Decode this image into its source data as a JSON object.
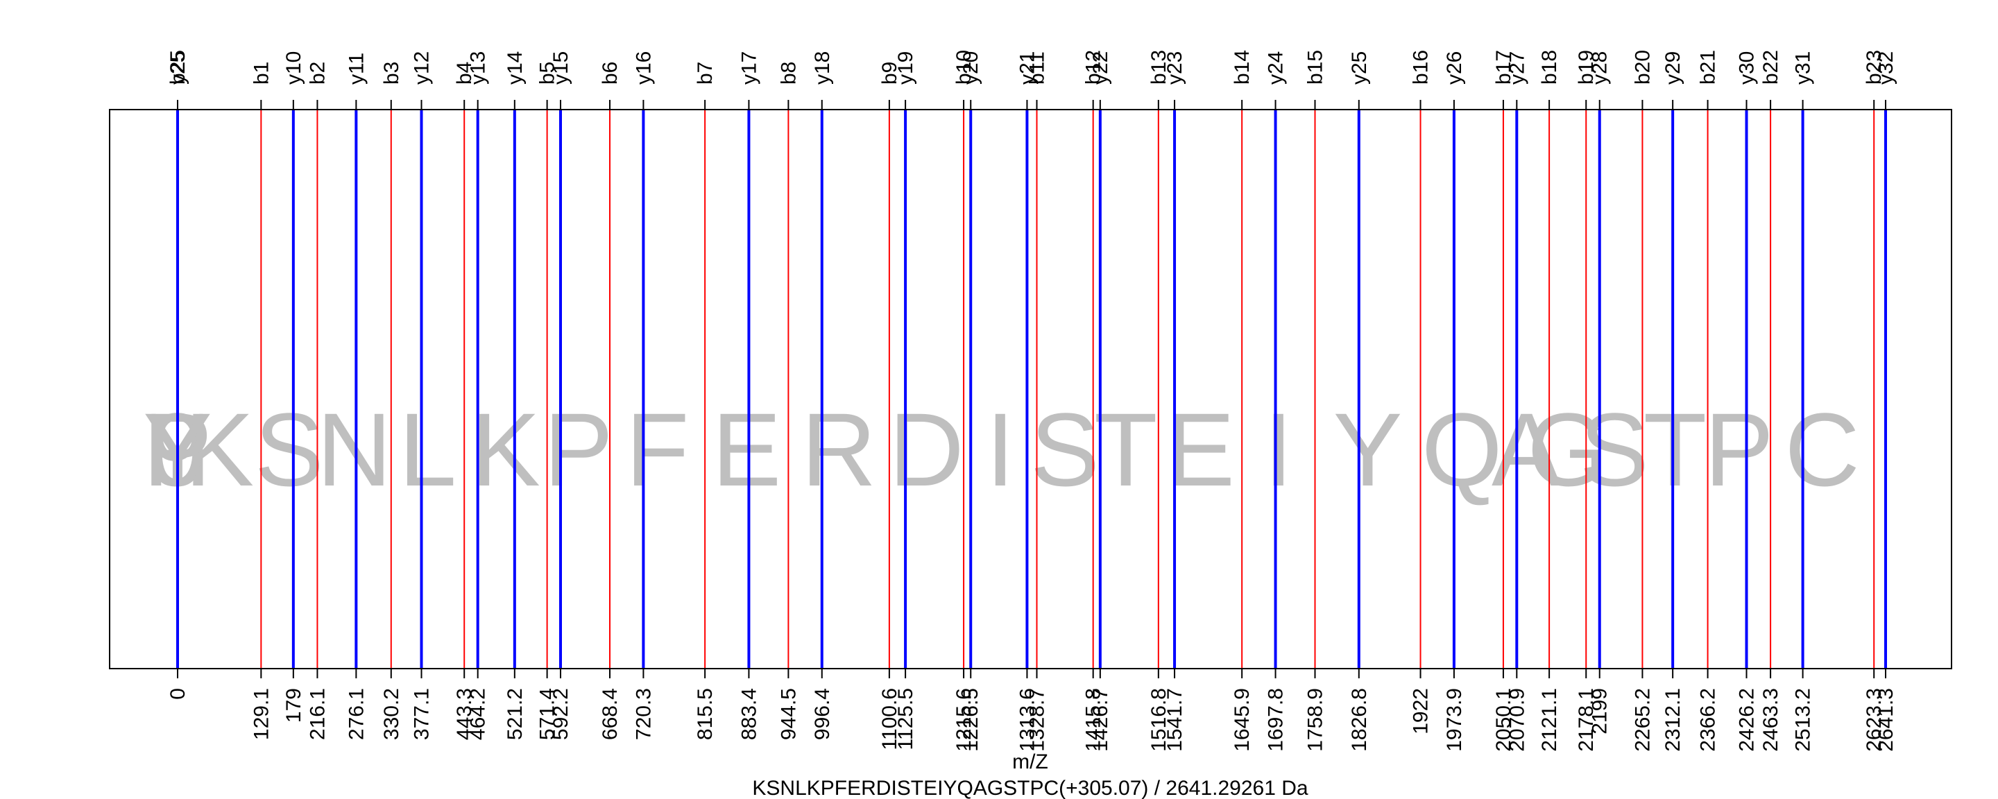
{
  "chart_data": {
    "type": "spectrum",
    "title": "KSNLKPFERDISTEIYQAGSTPC(+305.07) / 2641.29261 Da",
    "xlabel": "m/Z",
    "xlim": [
      0,
      2656
    ],
    "sequence": [
      "K",
      "S",
      "N",
      "L",
      "K",
      "P",
      "F",
      "E",
      "R",
      "D",
      "I",
      "S",
      "T",
      "E",
      "I",
      "Y",
      "Q",
      "A",
      "G",
      "S",
      "T",
      "P",
      "C"
    ],
    "colors": {
      "b": "#ff0000",
      "y": "#0000ff",
      "residue": "#bfbfbf",
      "frame": "#000000"
    },
    "b_ions": [
      {
        "label": "b1",
        "mz": 129.1,
        "mz_label": "129.1"
      },
      {
        "label": "b2",
        "mz": 216.1,
        "mz_label": "216.1"
      },
      {
        "label": "b3",
        "mz": 330.2,
        "mz_label": "330.2"
      },
      {
        "label": "b4",
        "mz": 443.3,
        "mz_label": "443.3"
      },
      {
        "label": "b5",
        "mz": 571.4,
        "mz_label": "571.4"
      },
      {
        "label": "b6",
        "mz": 668.4,
        "mz_label": "668.4"
      },
      {
        "label": "b7",
        "mz": 815.5,
        "mz_label": "815.5"
      },
      {
        "label": "b8",
        "mz": 944.5,
        "mz_label": "944.5"
      },
      {
        "label": "b9",
        "mz": 1100.6,
        "mz_label": "1100.6"
      },
      {
        "label": "b10",
        "mz": 1215.6,
        "mz_label": "1215.6"
      },
      {
        "label": "b11",
        "mz": 1328.7,
        "mz_label": "1328.7"
      },
      {
        "label": "b12",
        "mz": 1415.8,
        "mz_label": "1415.8"
      },
      {
        "label": "b13",
        "mz": 1516.8,
        "mz_label": "1516.8"
      },
      {
        "label": "b14",
        "mz": 1645.9,
        "mz_label": "1645.9"
      },
      {
        "label": "b15",
        "mz": 1758.9,
        "mz_label": "1758.9"
      },
      {
        "label": "b16",
        "mz": 1922,
        "mz_label": "1922"
      },
      {
        "label": "b17",
        "mz": 2050.1,
        "mz_label": "2050.1"
      },
      {
        "label": "b18",
        "mz": 2121.1,
        "mz_label": "2121.1"
      },
      {
        "label": "b19",
        "mz": 2178.1,
        "mz_label": "2178.1"
      },
      {
        "label": "b20",
        "mz": 2265.2,
        "mz_label": "2265.2"
      },
      {
        "label": "b21",
        "mz": 2366.2,
        "mz_label": "2366.2"
      },
      {
        "label": "b22",
        "mz": 2463.3,
        "mz_label": "2463.3"
      },
      {
        "label": "b23",
        "mz": 2623.3,
        "mz_label": "2623.3"
      },
      {
        "label": "b25",
        "mz": 0,
        "mz_label": "0"
      }
    ],
    "y_ions": [
      {
        "label": "y10",
        "mz": 179,
        "mz_label": "179"
      },
      {
        "label": "y11",
        "mz": 276.1,
        "mz_label": "276.1"
      },
      {
        "label": "y12",
        "mz": 377.1,
        "mz_label": "377.1"
      },
      {
        "label": "y13",
        "mz": 464.2,
        "mz_label": "464.2"
      },
      {
        "label": "y14",
        "mz": 521.2,
        "mz_label": "521.2"
      },
      {
        "label": "y15",
        "mz": 592.2,
        "mz_label": "592.2"
      },
      {
        "label": "y16",
        "mz": 720.3,
        "mz_label": "720.3"
      },
      {
        "label": "y17",
        "mz": 883.4,
        "mz_label": "883.4"
      },
      {
        "label": "y18",
        "mz": 996.4,
        "mz_label": "996.4"
      },
      {
        "label": "y19",
        "mz": 1125.5,
        "mz_label": "1125.5"
      },
      {
        "label": "y20",
        "mz": 1226.5,
        "mz_label": "1226.5"
      },
      {
        "label": "y21",
        "mz": 1313.6,
        "mz_label": "1313.6"
      },
      {
        "label": "y22",
        "mz": 1426.7,
        "mz_label": "1426.7"
      },
      {
        "label": "y23",
        "mz": 1541.7,
        "mz_label": "1541.7"
      },
      {
        "label": "y24",
        "mz": 1697.8,
        "mz_label": "1697.8"
      },
      {
        "label": "y25",
        "mz": 1826.8,
        "mz_label": "1826.8"
      },
      {
        "label": "y26",
        "mz": 1973.9,
        "mz_label": "1973.9"
      },
      {
        "label": "y27",
        "mz": 2070.9,
        "mz_label": "2070.9"
      },
      {
        "label": "y28",
        "mz": 2199,
        "mz_label": "2199"
      },
      {
        "label": "y29",
        "mz": 2312.1,
        "mz_label": "2312.1"
      },
      {
        "label": "y30",
        "mz": 2426.2,
        "mz_label": "2426.2"
      },
      {
        "label": "y31",
        "mz": 2513.2,
        "mz_label": "2513.2"
      },
      {
        "label": "y32",
        "mz": 2641.3,
        "mz_label": "2641.3"
      },
      {
        "label": "y25",
        "mz": 0,
        "mz_label": ""
      }
    ],
    "residue_letters": [
      {
        "letter": "K",
        "mz": 64.5
      },
      {
        "letter": "S",
        "mz": 172.6
      },
      {
        "letter": "N",
        "mz": 273.1
      },
      {
        "letter": "L",
        "mz": 386.7
      },
      {
        "letter": "K",
        "mz": 507.3
      },
      {
        "letter": "P",
        "mz": 619.9
      },
      {
        "letter": "F",
        "mz": 742
      },
      {
        "letter": "E",
        "mz": 880
      },
      {
        "letter": "R",
        "mz": 1022.5
      },
      {
        "letter": "D",
        "mz": 1158.1
      },
      {
        "letter": "I",
        "mz": 1272.2
      },
      {
        "letter": "S",
        "mz": 1372.2
      },
      {
        "letter": "T",
        "mz": 1466.3
      },
      {
        "letter": "E",
        "mz": 1581.4
      },
      {
        "letter": "I",
        "mz": 1702.4
      },
      {
        "letter": "Y",
        "mz": 1840.5
      },
      {
        "letter": "Q",
        "mz": 1986.1
      },
      {
        "letter": "A",
        "mz": 2085.6
      },
      {
        "letter": "G",
        "mz": 2149.6
      },
      {
        "letter": "S",
        "mz": 2221.7
      },
      {
        "letter": "T",
        "mz": 2315.7
      },
      {
        "letter": "P",
        "mz": 2414.8
      },
      {
        "letter": "C",
        "mz": 2543.3
      }
    ],
    "residue_overlay_at_zero": [
      "0",
      "9",
      "Y",
      "P"
    ]
  }
}
